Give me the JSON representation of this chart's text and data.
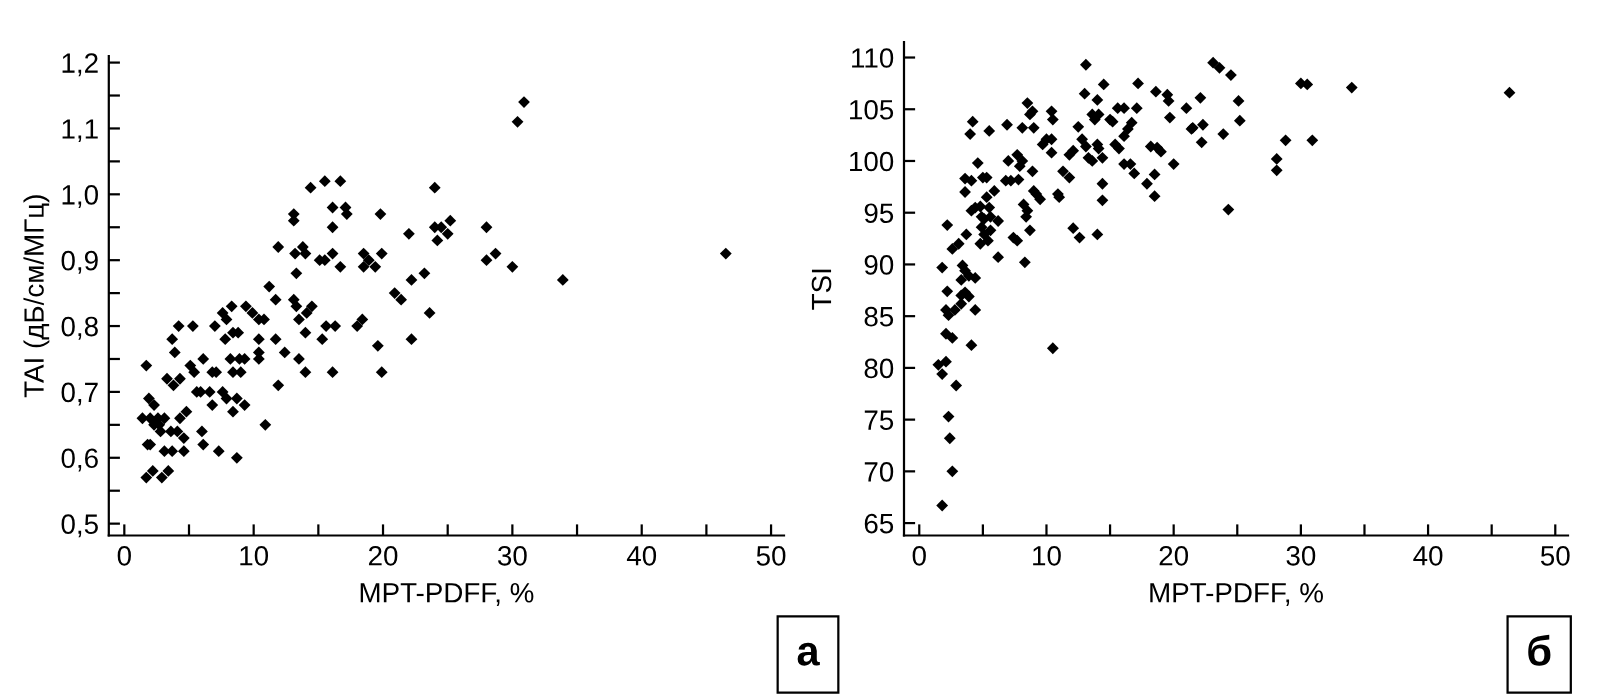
{
  "chart_data": [
    {
      "type": "scatter",
      "xlabel": "MPT-PDFF, %",
      "ylabel": "TAI (дБ/см/МГц)",
      "marker": "diamond",
      "grid": false,
      "annotations": [
        "а"
      ],
      "xlim": [
        -1.2,
        51
      ],
      "ylim": [
        0.482,
        1.21
      ],
      "xticks": [
        0,
        {
          "value": 5,
          "label": null
        },
        10,
        {
          "value": 15,
          "label": null
        },
        20,
        {
          "value": 25,
          "label": null
        },
        30,
        {
          "value": 35,
          "label": null
        },
        40,
        {
          "value": 45,
          "label": null
        },
        50
      ],
      "yticks": [
        {
          "value": 0.5,
          "label": "0,5"
        },
        {
          "value": 0.55,
          "label": null
        },
        {
          "value": 0.6,
          "label": "0,6"
        },
        {
          "value": 0.65,
          "label": null
        },
        {
          "value": 0.7,
          "label": "0,7"
        },
        {
          "value": 0.75,
          "label": null
        },
        {
          "value": 0.8,
          "label": "0,8"
        },
        {
          "value": 0.85,
          "label": null
        },
        {
          "value": 0.9,
          "label": "0,9"
        },
        {
          "value": 0.95,
          "label": null
        },
        {
          "value": 1.0,
          "label": "1,0"
        },
        {
          "value": 1.05,
          "label": null
        },
        {
          "value": 1.1,
          "label": "1,1"
        },
        {
          "value": 1.15,
          "label": null
        },
        {
          "value": 1.2,
          "label": "1,2"
        }
      ],
      "series": [
        {
          "color": "#000000",
          "x": [
            1.7,
            2.2,
            2.9,
            3.4,
            1.7,
            1.4,
            2.0,
            2.6,
            3.1,
            1.9,
            2.3,
            1.8,
            2.0,
            2.3,
            2.8,
            3.1,
            3.7,
            2.7,
            3.3,
            3.8,
            4.3,
            3.6,
            4.1,
            4.3,
            4.8,
            4.6,
            4.6,
            3.7,
            3.9,
            4.2,
            5.3,
            5.1,
            5.4,
            5.6,
            5.9,
            6.1,
            6.0,
            6.1,
            6.6,
            6.8,
            7.1,
            6.8,
            7.0,
            7.3,
            7.6,
            7.9,
            7.6,
            7.9,
            7.8,
            8.2,
            8.4,
            8.8,
            8.4,
            8.7,
            8.7,
            8.3,
            9.4,
            8.9,
            9.3,
            9.0,
            9.3,
            8.4,
            9.9,
            10.4,
            10.8,
            10.4,
            10.4,
            10.4,
            10.9,
            11.2,
            11.7,
            11.7,
            11.9,
            12.4,
            11.9,
            13.1,
            13.1,
            13.2,
            13.3,
            13.1,
            13.3,
            13.8,
            14.0,
            13.5,
            13.5,
            14.0,
            14.0,
            14.1,
            14.5,
            14.4,
            15.1,
            15.5,
            15.5,
            15.3,
            15.6,
            16.3,
            16.1,
            16.1,
            16.1,
            16.1,
            16.7,
            16.7,
            17.1,
            17.2,
            18.0,
            18.4,
            18.5,
            18.5,
            18.9,
            19.4,
            19.8,
            19.6,
            19.9,
            19.9,
            20.9,
            21.4,
            22.0,
            22.2,
            22.2,
            23.2,
            23.6,
            24.0,
            24.0,
            24.5,
            24.2,
            25.0,
            25.2,
            30.9,
            30.4,
            28.0,
            28.0,
            28.7,
            30.0,
            33.9,
            46.5
          ],
          "values": [
            0.57,
            0.58,
            0.57,
            0.58,
            0.74,
            0.66,
            0.66,
            0.66,
            0.66,
            0.69,
            0.68,
            0.62,
            0.62,
            0.65,
            0.64,
            0.61,
            0.61,
            0.65,
            0.72,
            0.71,
            0.72,
            0.64,
            0.64,
            0.66,
            0.67,
            0.61,
            0.63,
            0.78,
            0.76,
            0.8,
            0.8,
            0.74,
            0.73,
            0.7,
            0.7,
            0.75,
            0.64,
            0.62,
            0.7,
            0.73,
            0.73,
            0.68,
            0.8,
            0.61,
            0.82,
            0.81,
            0.7,
            0.69,
            0.78,
            0.75,
            0.79,
            0.79,
            0.67,
            0.69,
            0.6,
            0.83,
            0.83,
            0.75,
            0.75,
            0.73,
            0.68,
            0.73,
            0.82,
            0.81,
            0.81,
            0.78,
            0.76,
            0.75,
            0.65,
            0.86,
            0.84,
            0.78,
            0.71,
            0.76,
            0.92,
            0.97,
            0.96,
            0.91,
            0.88,
            0.84,
            0.83,
            0.92,
            0.91,
            0.75,
            0.81,
            0.79,
            0.73,
            0.82,
            0.83,
            1.01,
            0.9,
            0.9,
            1.02,
            0.78,
            0.8,
            0.8,
            0.73,
            0.98,
            0.95,
            0.91,
            0.89,
            1.02,
            0.98,
            0.97,
            0.8,
            0.81,
            0.91,
            0.89,
            0.9,
            0.89,
            0.97,
            0.77,
            0.73,
            0.91,
            0.85,
            0.84,
            0.94,
            0.87,
            0.78,
            0.88,
            0.82,
            1.01,
            0.95,
            0.95,
            0.93,
            0.94,
            0.96,
            1.14,
            1.11,
            0.95,
            0.9,
            0.91,
            0.89,
            0.87,
            0.91
          ]
        }
      ]
    },
    {
      "type": "scatter",
      "xlabel": "MPT-PDFF, %",
      "ylabel": "TSI",
      "marker": "diamond",
      "grid": false,
      "annotations": [
        "б"
      ],
      "xlim": [
        -1.2,
        51
      ],
      "ylim": [
        63.8,
        111.5
      ],
      "xticks": [
        0,
        {
          "value": 5,
          "label": null
        },
        10,
        {
          "value": 15,
          "label": null
        },
        20,
        {
          "value": 25,
          "label": null
        },
        30,
        {
          "value": 35,
          "label": null
        },
        40,
        {
          "value": 45,
          "label": null
        },
        50
      ],
      "yticks": [
        65,
        70,
        75,
        80,
        85,
        90,
        95,
        100,
        105,
        110
      ],
      "series": [
        {
          "color": "#000000",
          "x": [
            1.8,
            2.6,
            2.4,
            2.3,
            2.9,
            1.5,
            2.1,
            1.8,
            4.1,
            2.1,
            2.1,
            2.3,
            2.6,
            2.8,
            3.3,
            3.3,
            3.6,
            3.9,
            4.4,
            2.2,
            1.8,
            2.6,
            2.2,
            3.1,
            3.3,
            3.6,
            3.9,
            4.4,
            3.4,
            3.7,
            4.1,
            4.4,
            3.6,
            3.6,
            4.1,
            4.6,
            4.8,
            4.9,
            4.9,
            4.8,
            5.0,
            5.3,
            5.3,
            5.5,
            5.1,
            5.4,
            5.6,
            5.1,
            5.6,
            5.9,
            6.2,
            6.2,
            4.0,
            4.2,
            5.5,
            6.8,
            7.0,
            6.9,
            7.2,
            7.4,
            7.7,
            7.7,
            7.9,
            7.8,
            8.1,
            8.2,
            8.4,
            8.5,
            8.3,
            8.1,
            8.5,
            8.7,
            8.9,
            9.0,
            8.7,
            8.9,
            9.0,
            9.2,
            9.5,
            9.7,
            10.0,
            10.4,
            10.4,
            10.5,
            10.4,
            10.5,
            10.9,
            11.0,
            11.3,
            11.8,
            11.8,
            12.1,
            12.1,
            12.6,
            12.5,
            13.1,
            13.0,
            12.8,
            13.1,
            13.3,
            13.6,
            13.6,
            13.8,
            14.1,
            14.0,
            14.0,
            14.1,
            14.0,
            14.4,
            14.4,
            14.4,
            14.5,
            15.0,
            15.2,
            15.4,
            15.7,
            15.6,
            16.1,
            16.1,
            16.6,
            16.1,
            16.4,
            16.7,
            16.9,
            17.1,
            17.2,
            17.9,
            18.5,
            18.5,
            18.2,
            18.7,
            19.0,
            18.6,
            19.5,
            19.6,
            19.7,
            20.0,
            21.0,
            21.5,
            22.1,
            22.3,
            22.2,
            23.1,
            23.6,
            24.5,
            21.4,
            23.9,
            25.1,
            25.2,
            24.3,
            28.1,
            28.1,
            28.8,
            30.0,
            30.5,
            30.9,
            34.0,
            46.4
          ],
          "values": [
            66.7,
            70.0,
            73.2,
            75.3,
            78.3,
            80.3,
            80.6,
            79.4,
            82.2,
            83.3,
            85.6,
            85.1,
            82.9,
            85.6,
            87.0,
            86.2,
            87.3,
            86.9,
            85.6,
            87.4,
            89.7,
            91.5,
            93.8,
            92.0,
            88.5,
            89.4,
            88.9,
            88.7,
            89.9,
            92.9,
            95.2,
            95.5,
            97.0,
            98.3,
            98.1,
            99.8,
            95.6,
            94.6,
            93.6,
            92.0,
            98.4,
            98.4,
            96.5,
            95.5,
            92.9,
            92.3,
            93.3,
            94.4,
            94.6,
            97.1,
            94.2,
            90.7,
            102.6,
            103.8,
            102.9,
            98.1,
            100.0,
            103.5,
            98.1,
            92.6,
            92.3,
            100.6,
            99.5,
            98.2,
            100.0,
            95.8,
            94.6,
            95.2,
            90.2,
            103.2,
            105.6,
            104.5,
            104.8,
            103.2,
            93.3,
            99.0,
            97.1,
            96.8,
            96.3,
            101.6,
            102.1,
            102.1,
            104.8,
            104.0,
            100.8,
            81.9,
            96.8,
            96.5,
            99.0,
            98.4,
            100.6,
            101.0,
            93.5,
            92.6,
            103.3,
            109.3,
            106.5,
            102.1,
            101.4,
            100.3,
            100.0,
            104.5,
            104.0,
            104.5,
            105.9,
            101.6,
            101.2,
            92.9,
            100.3,
            97.8,
            96.2,
            107.4,
            104.0,
            103.8,
            101.6,
            101.2,
            105.1,
            105.1,
            99.7,
            99.7,
            102.4,
            103.1,
            103.7,
            98.8,
            105.1,
            107.5,
            97.8,
            98.7,
            96.6,
            101.4,
            101.3,
            100.9,
            106.7,
            106.4,
            105.8,
            104.2,
            99.7,
            105.1,
            103.2,
            106.1,
            103.5,
            101.8,
            109.5,
            109.0,
            108.3,
            103.1,
            102.6,
            105.8,
            103.9,
            95.3,
            100.2,
            99.1,
            102.0,
            107.5,
            107.4,
            102.0,
            107.1,
            106.6
          ]
        }
      ]
    }
  ]
}
